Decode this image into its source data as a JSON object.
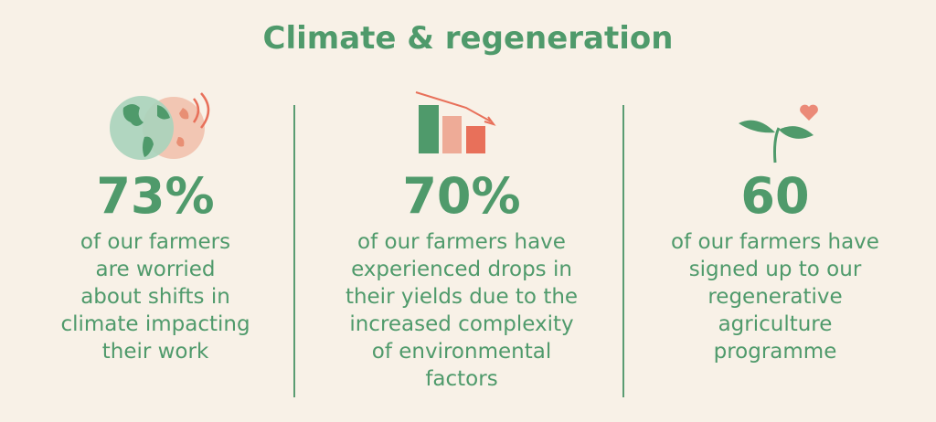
{
  "header": {
    "title": "Climate & regeneration"
  },
  "stats": [
    {
      "number": "73%",
      "lines": [
        "of our farmers",
        "are worried",
        "about shifts in",
        "climate impacting",
        "their work"
      ]
    },
    {
      "number": "70%",
      "lines": [
        "of our farmers have",
        "experienced drops in",
        "their yields due to the",
        "increased complexity",
        "of environmental",
        "factors"
      ]
    },
    {
      "number": "60",
      "lines": [
        "of our farmers have",
        "signed up to our",
        "regenerative",
        "agriculture",
        "programme"
      ]
    }
  ]
}
